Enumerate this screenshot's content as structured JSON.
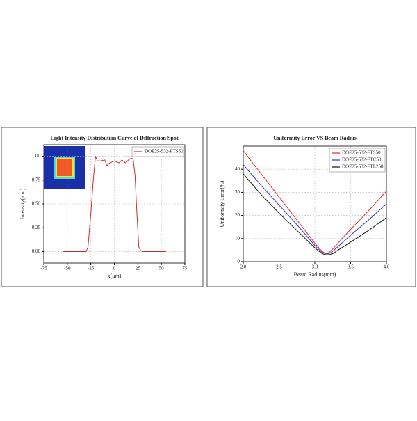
{
  "chart_data": [
    {
      "type": "line",
      "title": "Light Intensity Distribution Curve of Diffraction Spot",
      "x_label": "x(μm)",
      "y_label": "Intensity(a.u.)",
      "x": [
        -55,
        -30,
        -28,
        -25,
        -22,
        -20,
        -18,
        -15,
        -10,
        -8,
        -5,
        0,
        5,
        8,
        12,
        15,
        18,
        20,
        22,
        24,
        26,
        28,
        30,
        55
      ],
      "series": [
        {
          "name": "DOE25-532-FTS50",
          "color": "#d62728",
          "values": [
            0,
            0,
            0.05,
            0.4,
            0.8,
            1.0,
            0.95,
            0.95,
            0.96,
            0.9,
            0.93,
            0.95,
            0.93,
            0.96,
            0.93,
            0.96,
            0.98,
            0.97,
            0.8,
            0.4,
            0.05,
            0.01,
            0,
            0
          ]
        }
      ],
      "xlim": [
        -75,
        75
      ],
      "ylim": [
        -0.12,
        1.12
      ],
      "xticks": [
        -75,
        -50,
        -25,
        0,
        25,
        50,
        75
      ],
      "yticks": [
        {
          "value": 0,
          "label": "0.00"
        },
        {
          "value": 0.25,
          "label": "0.25"
        },
        {
          "value": 0.5,
          "label": "0.50"
        },
        {
          "value": 0.75,
          "label": "0.75"
        },
        {
          "value": 1,
          "label": "1.00"
        }
      ],
      "grid": true,
      "legend": "upper right"
    },
    {
      "type": "line",
      "title": "Uniformity Error VS Beam Radius",
      "x_label": "Beam Radius(mm)",
      "y_label": "Uniformity Error(%)",
      "x": [
        2.0,
        2.25,
        2.5,
        2.75,
        3.0,
        3.1,
        3.15,
        3.2,
        3.25,
        3.5,
        3.75,
        4.0
      ],
      "series": [
        {
          "name": "DOE25-532-FTS50",
          "color": "#e8262a",
          "values": [
            48,
            38,
            28,
            18,
            8,
            4.5,
            3.5,
            4,
            5.5,
            14,
            22,
            30.5
          ]
        },
        {
          "name": "DOE25-532-FTC50",
          "color": "#2a35c8",
          "values": [
            42,
            33,
            24.5,
            16,
            7,
            4,
            3.5,
            3.5,
            4.5,
            11.5,
            18,
            25
          ]
        },
        {
          "name": "DOE25-532-FTL250",
          "color": "#111111",
          "values": [
            38,
            29,
            21,
            13.5,
            6,
            3.5,
            3,
            3,
            3.5,
            8.5,
            13.5,
            19
          ]
        }
      ],
      "xlim": [
        2,
        4
      ],
      "ylim": [
        0,
        50
      ],
      "xticks": [
        {
          "value": 2,
          "label": "2.0"
        },
        2.5,
        {
          "value": 3,
          "label": "3.0"
        },
        3.5,
        {
          "value": 4,
          "label": "4.0"
        }
      ],
      "yticks": [
        0,
        10,
        20,
        30,
        40
      ],
      "grid": true,
      "legend": "upper right"
    }
  ]
}
